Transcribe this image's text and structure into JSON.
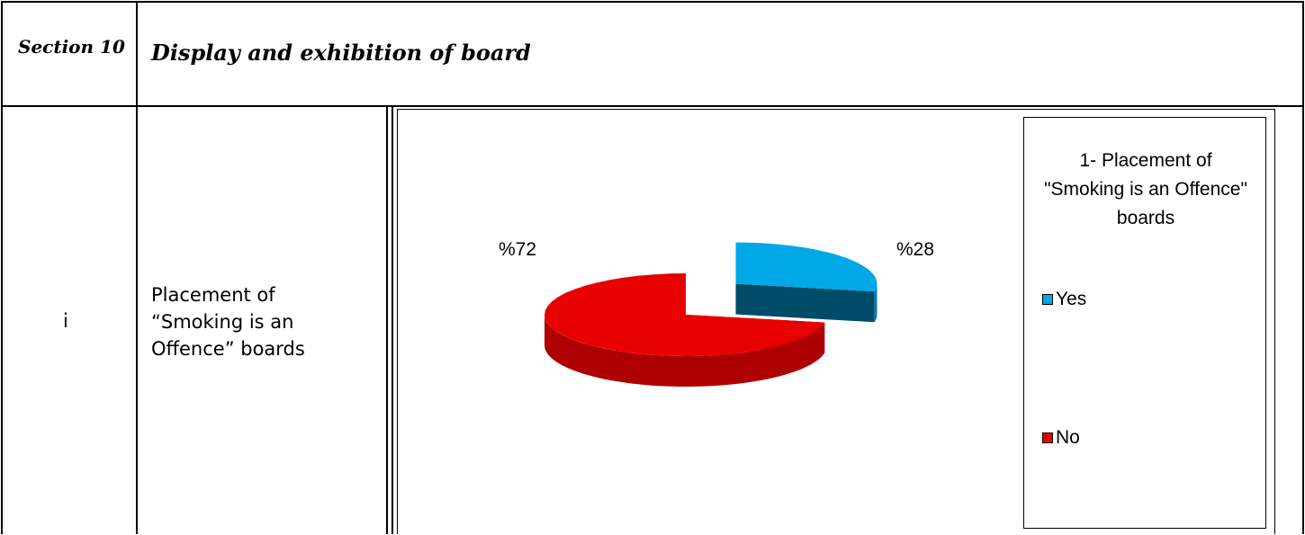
{
  "table": {
    "header": [
      "Section 10",
      "Display and exhibition of board"
    ],
    "rows": [
      [
        "i",
        "Placement of “Smoking is an Offence” boards"
      ]
    ]
  },
  "chart_data": {
    "type": "pie",
    "legend_title": "1- Placement of \"Smoking is an Offence\" boards",
    "categories": [
      "Yes",
      "No"
    ],
    "values": [
      28,
      72
    ],
    "value_labels": [
      "%28",
      "%72"
    ],
    "colors": [
      "#00a8e8",
      "#e80000"
    ],
    "explode": [
      true,
      false
    ]
  }
}
